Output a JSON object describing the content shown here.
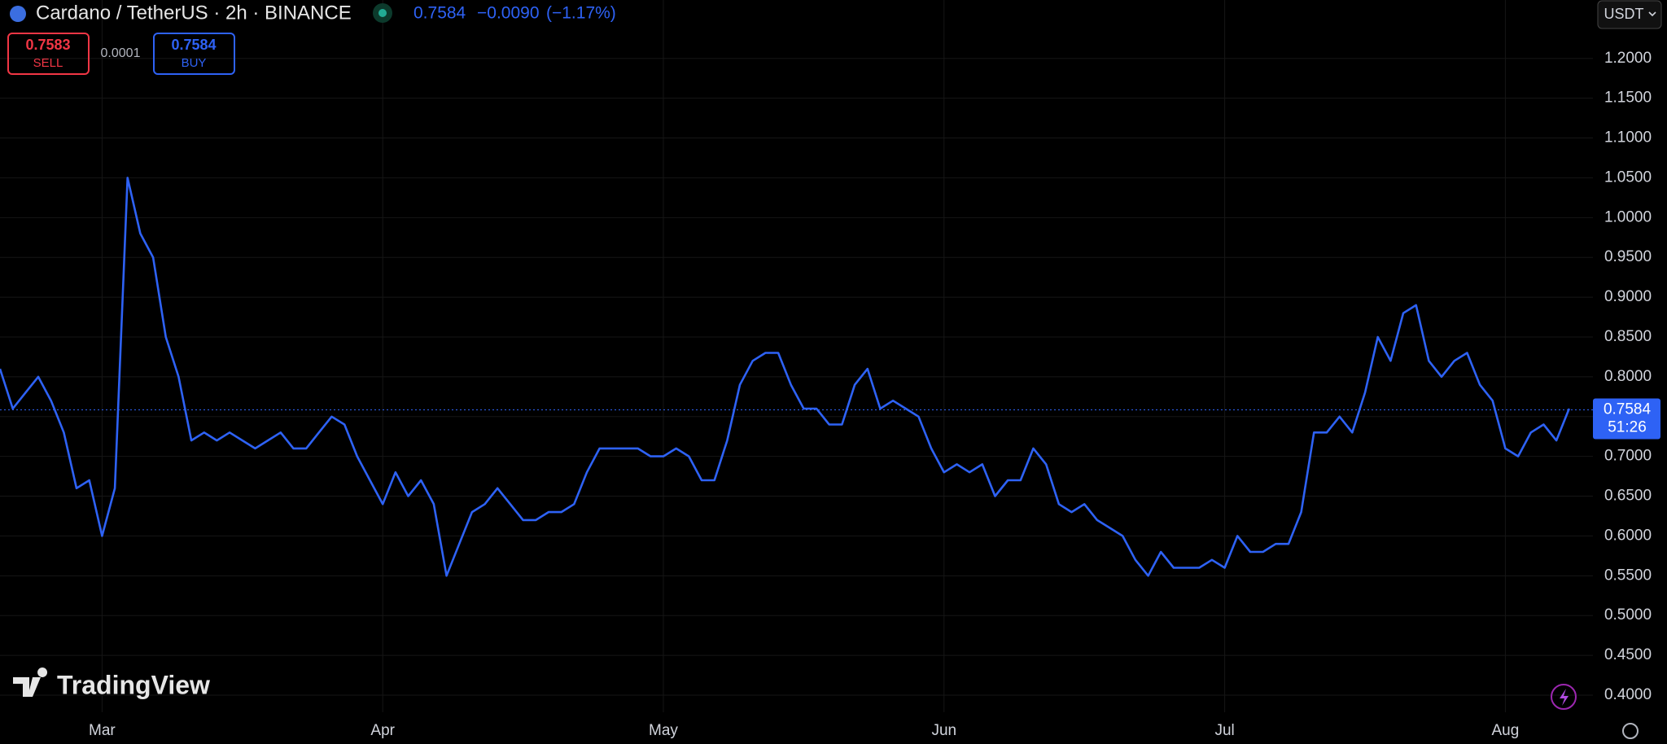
{
  "header": {
    "symbol": "Cardano / TetherUS · 2h · BINANCE",
    "price": 0.7584,
    "change": "−0.0090",
    "change_pct": "(−1.17%)",
    "sell_price": 0.7583,
    "sell": "SELL",
    "spread": 0.0001,
    "buy_price": 0.7584,
    "buy": "BUY",
    "currency": "USDT",
    "logo": "TradingView"
  },
  "chart_data": {
    "type": "line",
    "color": "#2e62f5",
    "grid": true,
    "last_price": 0.7584,
    "countdown": "51:26",
    "categories": [
      null,
      null,
      null,
      null,
      null,
      null,
      null,
      null,
      "Mar",
      null,
      null,
      null,
      null,
      null,
      null,
      null,
      null,
      null,
      null,
      null,
      null,
      null,
      null,
      null,
      null,
      null,
      null,
      null,
      null,
      null,
      "Apr",
      null,
      null,
      null,
      null,
      null,
      null,
      null,
      null,
      null,
      null,
      null,
      null,
      null,
      null,
      null,
      null,
      null,
      null,
      null,
      null,
      null,
      "May",
      null,
      null,
      null,
      null,
      null,
      null,
      null,
      null,
      null,
      null,
      null,
      null,
      null,
      null,
      null,
      null,
      null,
      null,
      null,
      null,
      null,
      "Jun",
      null,
      null,
      null,
      null,
      null,
      null,
      null,
      null,
      null,
      null,
      null,
      null,
      null,
      null,
      null,
      null,
      null,
      null,
      null,
      null,
      null,
      "Jul",
      null,
      null,
      null,
      null,
      null,
      null,
      null,
      null,
      null,
      null,
      null,
      null,
      null,
      null,
      null,
      null,
      null,
      null,
      null,
      null,
      null,
      "Aug",
      null,
      null,
      null,
      null,
      null
    ],
    "values": [
      0.81,
      0.76,
      0.78,
      0.8,
      0.77,
      0.73,
      0.66,
      0.67,
      0.6,
      0.66,
      1.05,
      0.98,
      0.95,
      0.85,
      0.8,
      0.72,
      0.73,
      0.72,
      0.73,
      0.72,
      0.71,
      0.72,
      0.73,
      0.71,
      0.71,
      0.73,
      0.75,
      0.74,
      0.7,
      0.67,
      0.64,
      0.68,
      0.65,
      0.67,
      0.64,
      0.55,
      0.59,
      0.63,
      0.64,
      0.66,
      0.64,
      0.62,
      0.62,
      0.63,
      0.63,
      0.64,
      0.68,
      0.71,
      0.71,
      0.71,
      0.71,
      0.7,
      0.7,
      0.71,
      0.7,
      0.67,
      0.67,
      0.72,
      0.79,
      0.82,
      0.83,
      0.83,
      0.79,
      0.76,
      0.76,
      0.74,
      0.74,
      0.79,
      0.81,
      0.76,
      0.77,
      0.76,
      0.75,
      0.71,
      0.68,
      0.69,
      0.68,
      0.69,
      0.65,
      0.67,
      0.67,
      0.71,
      0.69,
      0.64,
      0.63,
      0.64,
      0.62,
      0.61,
      0.6,
      0.57,
      0.55,
      0.58,
      0.56,
      0.56,
      0.56,
      0.57,
      0.56,
      0.6,
      0.58,
      0.58,
      0.59,
      0.59,
      0.63,
      0.73,
      0.73,
      0.75,
      0.73,
      0.78,
      0.85,
      0.82,
      0.88,
      0.89,
      0.82,
      0.8,
      0.82,
      0.83,
      0.79,
      0.77,
      0.71,
      0.7,
      0.73,
      0.74,
      0.72,
      0.76
    ],
    "ylim": [
      0.3785,
      1.2734
    ],
    "yticks": [
      {
        "value": 0.4,
        "label": "0.4000"
      },
      {
        "value": 0.45,
        "label": "0.4500"
      },
      {
        "value": 0.5,
        "label": "0.5000"
      },
      {
        "value": 0.55,
        "label": "0.5500"
      },
      {
        "value": 0.6,
        "label": "0.6000"
      },
      {
        "value": 0.65,
        "label": "0.6500"
      },
      {
        "value": 0.7,
        "label": "0.7000"
      },
      {
        "value": 0.75,
        "label": "0.7500"
      },
      {
        "value": 0.8,
        "label": "0.8000"
      },
      {
        "value": 0.85,
        "label": "0.8500"
      },
      {
        "value": 0.9,
        "label": "0.9000"
      },
      {
        "value": 0.95,
        "label": "0.9500"
      },
      {
        "value": 1.0,
        "label": "1.0000"
      },
      {
        "value": 1.05,
        "label": "1.0500"
      },
      {
        "value": 1.1,
        "label": "1.1000"
      },
      {
        "value": 1.15,
        "label": "1.1500"
      },
      {
        "value": 1.2,
        "label": "1.2000"
      }
    ]
  }
}
